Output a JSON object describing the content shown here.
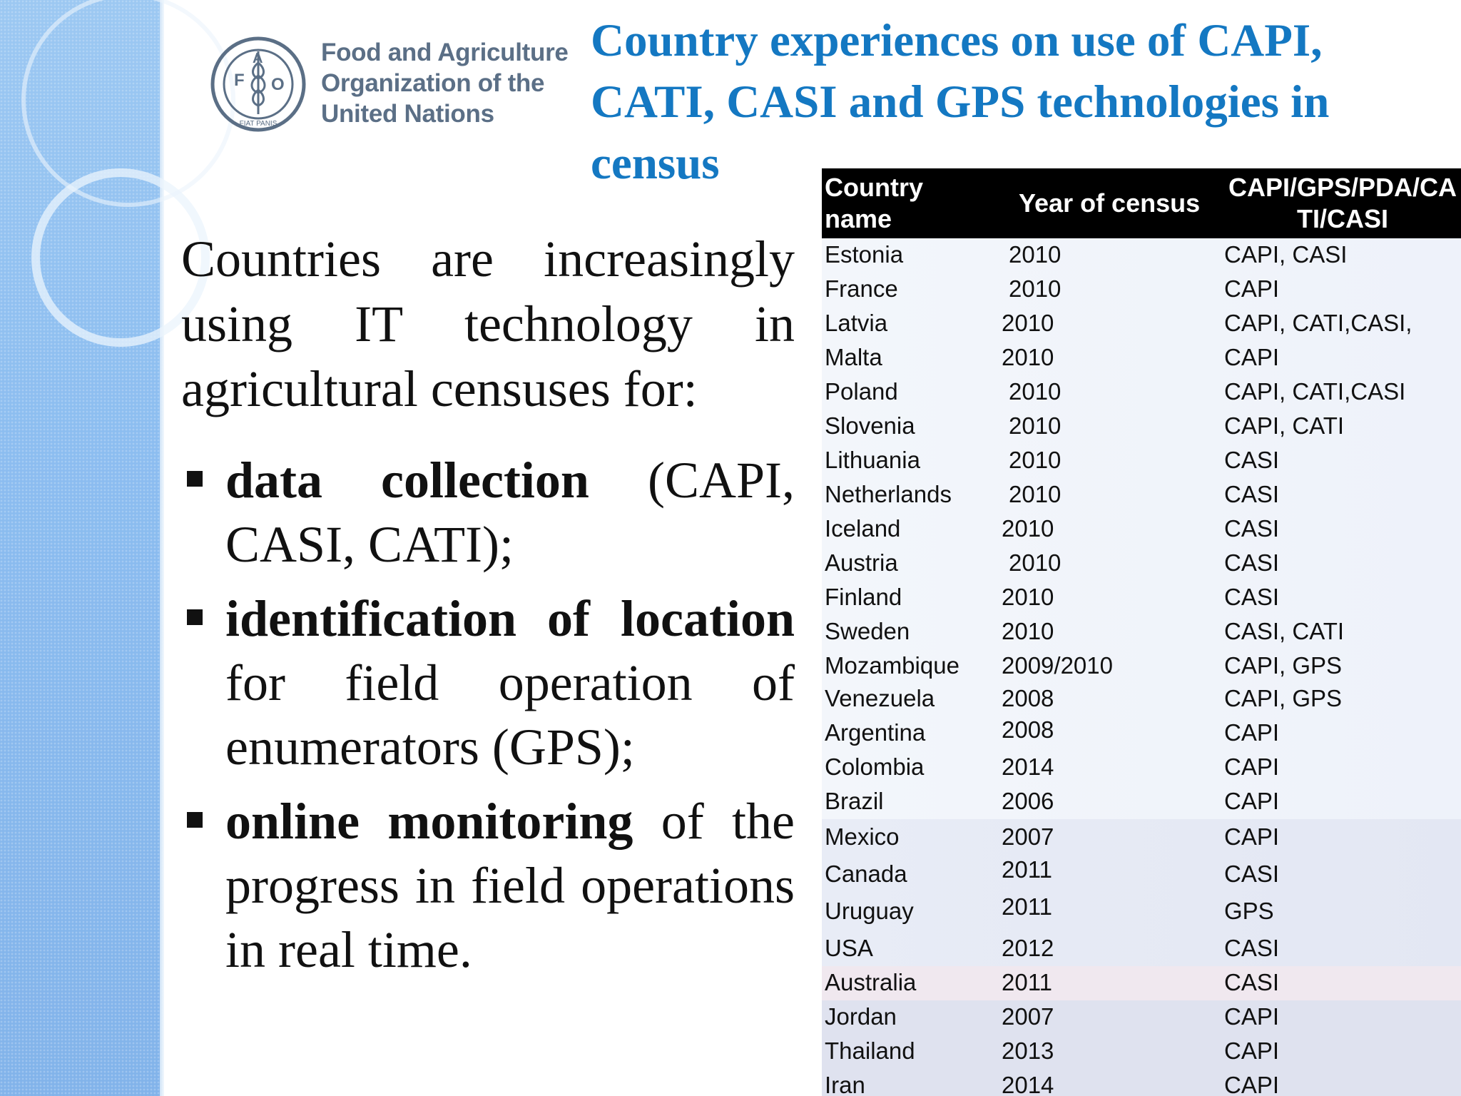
{
  "org": {
    "name_lines": [
      "Food and Agriculture",
      "Organization of the",
      "United Nations"
    ],
    "logo_letters": [
      "F",
      "A",
      "O"
    ],
    "logo_motto": "FIAT PANIS"
  },
  "title_lines": [
    "Country experiences on use of CAPI,",
    "CATI, CASI and GPS technologies in",
    "census"
  ],
  "intro": "Countries are increasingly using IT technology  in agricultural censuses for:",
  "bullets": [
    {
      "bold": "data collection",
      "rest": " (CAPI, CASI, CATI);"
    },
    {
      "bold": "identification of location",
      "rest": " for field operation  of enumerators (GPS);"
    },
    {
      "bold": "online monitoring",
      "rest": " of the progress in field operations in real time."
    }
  ],
  "table": {
    "headers": {
      "country": "Country name",
      "year": "Year of census",
      "tech_line1": "CAPI/GPS/PDA/CA",
      "tech_line2": "TI/CASI"
    },
    "rows": [
      {
        "country": "Estonia",
        "year": "2010",
        "tech": "CAPI, CASI"
      },
      {
        "country": "France",
        "year": "2010",
        "tech": "CAPI"
      },
      {
        "country": "Latvia",
        "year": "2010",
        "tech": "CAPI, CATI,CASI,"
      },
      {
        "country": "Malta",
        "year": "2010",
        "tech": "CAPI"
      },
      {
        "country": "Poland",
        "year": "2010",
        "tech": "CAPI, CATI,CASI"
      },
      {
        "country": "Slovenia",
        "year": "2010",
        "tech": "CAPI, CATI"
      },
      {
        "country": "Lithuania",
        "year": "2010",
        "tech": "CASI"
      },
      {
        "country": "Netherlands",
        "year": "2010",
        "tech": "CASI"
      },
      {
        "country": "Iceland",
        "year": "2010",
        "tech": "CASI"
      },
      {
        "country": "Austria",
        "year": "2010",
        "tech": "CASI"
      },
      {
        "country": "Finland",
        "year": "2010",
        "tech": "CASI"
      },
      {
        "country": "Sweden",
        "year": "2010",
        "tech": "CASI, CATI"
      },
      {
        "country": "Mozambique",
        "year": "2009/2010",
        "tech": "CAPI, GPS"
      },
      {
        "country": "Venezuela",
        "year": "2008",
        "tech": "CAPI, GPS"
      },
      {
        "country": "Argentina",
        "year": "2008",
        "tech": "CAPI"
      },
      {
        "country": "Colombia",
        "year": "2014",
        "tech": "CAPI"
      },
      {
        "country": "Brazil",
        "year": "2006",
        "tech": "CAPI"
      },
      {
        "country": "Mexico",
        "year": "2007",
        "tech": "CAPI"
      },
      {
        "country": "Canada",
        "year": "2011",
        "tech": "CASI"
      },
      {
        "country": "Uruguay",
        "year": "2011",
        "tech": "GPS"
      },
      {
        "country": "USA",
        "year": "2012",
        "tech": "CASI"
      },
      {
        "country": "Australia",
        "year": "2011",
        "tech": "CASI"
      },
      {
        "country": "Jordan",
        "year": "2007",
        "tech": "CAPI"
      },
      {
        "country": "Thailand",
        "year": "2013",
        "tech": "CAPI"
      },
      {
        "country": "Iran",
        "year": "2014",
        "tech": "CAPI"
      }
    ]
  },
  "colors": {
    "title": "#1478c2",
    "org_text": "#5b6f86",
    "side_band": "#8cbdf0",
    "header_bg": "#000000"
  }
}
